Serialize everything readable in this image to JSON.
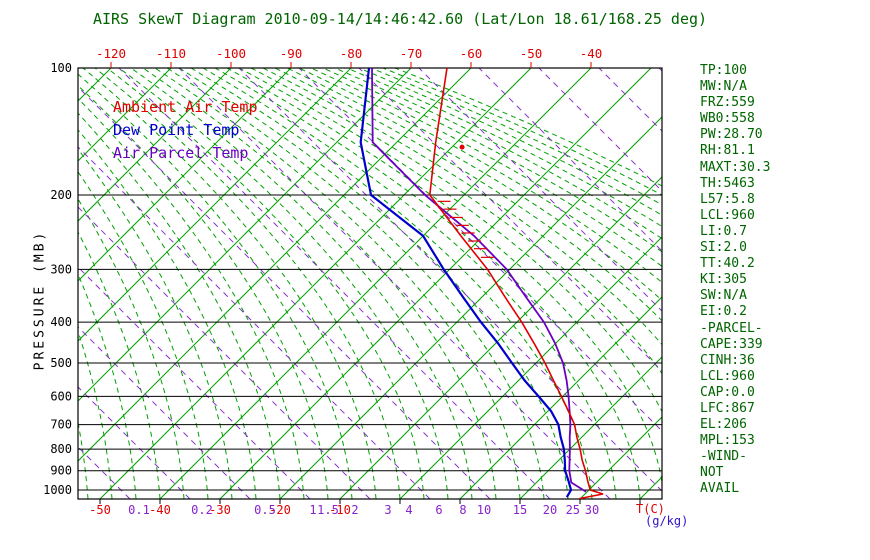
{
  "title": "AIRS SkewT Diagram 2010-09-14/14:46:42.60 (Lat/Lon 18.61/168.25 deg)",
  "colors": {
    "title": "#006400",
    "stats": "#006400",
    "isotherm": "#00a000",
    "moist_adiabat": "#00a000",
    "dry_adiabat": "#8833cc",
    "ambient": "#e00000",
    "dewpoint": "#0000cc",
    "parcel": "#6a00c0",
    "axis": "#000000",
    "top_labels": "#e00000",
    "temp_labels": "#e00000",
    "mixing_labels": "#8822cc",
    "gkg_label": "#3311cc"
  },
  "legend": [
    {
      "label": "Ambient Air Temp",
      "color": "#e00000"
    },
    {
      "label": "Dew Point Temp",
      "color": "#0000cc"
    },
    {
      "label": "Air Parcel Temp",
      "color": "#6a00c0"
    }
  ],
  "pressure_axis": {
    "label": "PRESSURE (MB)",
    "ticks": [
      100,
      200,
      300,
      400,
      500,
      600,
      700,
      800,
      900,
      1000
    ]
  },
  "top_axis_ticks": [
    -120,
    -110,
    -100,
    -90,
    -80,
    -70,
    -60,
    -50,
    -40
  ],
  "bottom_axis": {
    "temp_ticks": [
      -50,
      -40,
      -30,
      -20,
      -10
    ],
    "temp_unit": "T(C)",
    "mixing_unit": "(g/kg)",
    "mixing_ticks": [
      {
        "w": "0.1",
        "td": -43.5
      },
      {
        "w": "0.2",
        "td": -33
      },
      {
        "w": "0.5",
        "td": -22.5
      },
      {
        "w": "1",
        "td": -14.5
      },
      {
        "w": "1.5",
        "td": -12
      },
      {
        "w": "2",
        "td": -7.5
      },
      {
        "w": "3",
        "td": -2
      },
      {
        "w": "4",
        "td": 1.5
      },
      {
        "w": "6",
        "td": 6.5
      },
      {
        "w": "8",
        "td": 10.5
      },
      {
        "w": "10",
        "td": 14
      },
      {
        "w": "15",
        "td": 20
      },
      {
        "w": "20",
        "td": 25
      },
      {
        "w": "25",
        "td": 28.8
      },
      {
        "w": "30",
        "td": 32
      }
    ]
  },
  "chart_data": {
    "type": "skewt-log-p",
    "pressure_range": [
      100,
      1050
    ],
    "surface_temp_range": [
      -50,
      44
    ],
    "series": [
      {
        "name": "Ambient Air Temp",
        "color": "#e00000",
        "width": 1.6,
        "points": [
          [
            100,
            -64
          ],
          [
            150,
            -53.5
          ],
          [
            200,
            -45.7
          ],
          [
            250,
            -33.7
          ],
          [
            300,
            -23.7
          ],
          [
            350,
            -16
          ],
          [
            400,
            -9.2
          ],
          [
            450,
            -3.5
          ],
          [
            500,
            1.5
          ],
          [
            550,
            5.8
          ],
          [
            600,
            9.8
          ],
          [
            650,
            13.4
          ],
          [
            700,
            16.7
          ],
          [
            750,
            19.2
          ],
          [
            800,
            21.7
          ],
          [
            850,
            23.9
          ],
          [
            900,
            26.2
          ],
          [
            950,
            28.2
          ],
          [
            1000,
            30.2
          ],
          [
            1022,
            33
          ],
          [
            1048,
            29.8
          ]
        ]
      },
      {
        "name": "Dew Point Temp",
        "color": "#0000cc",
        "width": 2.2,
        "points": [
          [
            100,
            -77
          ],
          [
            150,
            -66
          ],
          [
            200,
            -55.5
          ],
          [
            250,
            -40
          ],
          [
            300,
            -31
          ],
          [
            350,
            -23
          ],
          [
            400,
            -16
          ],
          [
            450,
            -9.5
          ],
          [
            500,
            -4
          ],
          [
            550,
            1
          ],
          [
            600,
            6
          ],
          [
            650,
            10.5
          ],
          [
            700,
            14
          ],
          [
            750,
            16.5
          ],
          [
            800,
            19
          ],
          [
            850,
            21
          ],
          [
            900,
            22.8
          ],
          [
            950,
            25
          ],
          [
            1000,
            27
          ],
          [
            1040,
            27.5
          ]
        ]
      },
      {
        "name": "Air Parcel Temp",
        "color": "#6a00c0",
        "width": 1.8,
        "points": [
          [
            100,
            -76.5
          ],
          [
            150,
            -64
          ],
          [
            200,
            -46.5
          ],
          [
            250,
            -31.5
          ],
          [
            300,
            -20.5
          ],
          [
            350,
            -12.5
          ],
          [
            400,
            -5.5
          ],
          [
            450,
            0
          ],
          [
            500,
            4.5
          ],
          [
            550,
            8
          ],
          [
            600,
            11
          ],
          [
            650,
            13.6
          ],
          [
            700,
            16
          ],
          [
            750,
            18
          ],
          [
            800,
            20
          ],
          [
            850,
            21.8
          ],
          [
            900,
            23.5
          ],
          [
            960,
            25.8
          ],
          [
            1010,
            29.8
          ]
        ]
      }
    ],
    "cape_hatch_pressures": [
      207,
      216,
      226,
      236,
      246,
      257,
      268,
      281
    ],
    "marker_dot": {
      "p": 154,
      "t": -48.3
    }
  },
  "stats": [
    "TP:100",
    "MW:N/A",
    "FRZ:559",
    "WB0:558",
    "PW:28.70",
    "RH:81.1",
    "MAXT:30.3",
    "TH:5463",
    "L57:5.8",
    "LCL:960",
    "LI:0.7",
    "SI:2.0",
    "TT:40.2",
    "KI:305",
    "SW:N/A",
    "EI:0.2",
    "-PARCEL-",
    "CAPE:339",
    "CINH:36",
    "LCL:960",
    "CAP:0.0",
    "LFC:867",
    "EL:206",
    "MPL:153",
    "-WIND-",
    "NOT",
    "AVAIL"
  ]
}
